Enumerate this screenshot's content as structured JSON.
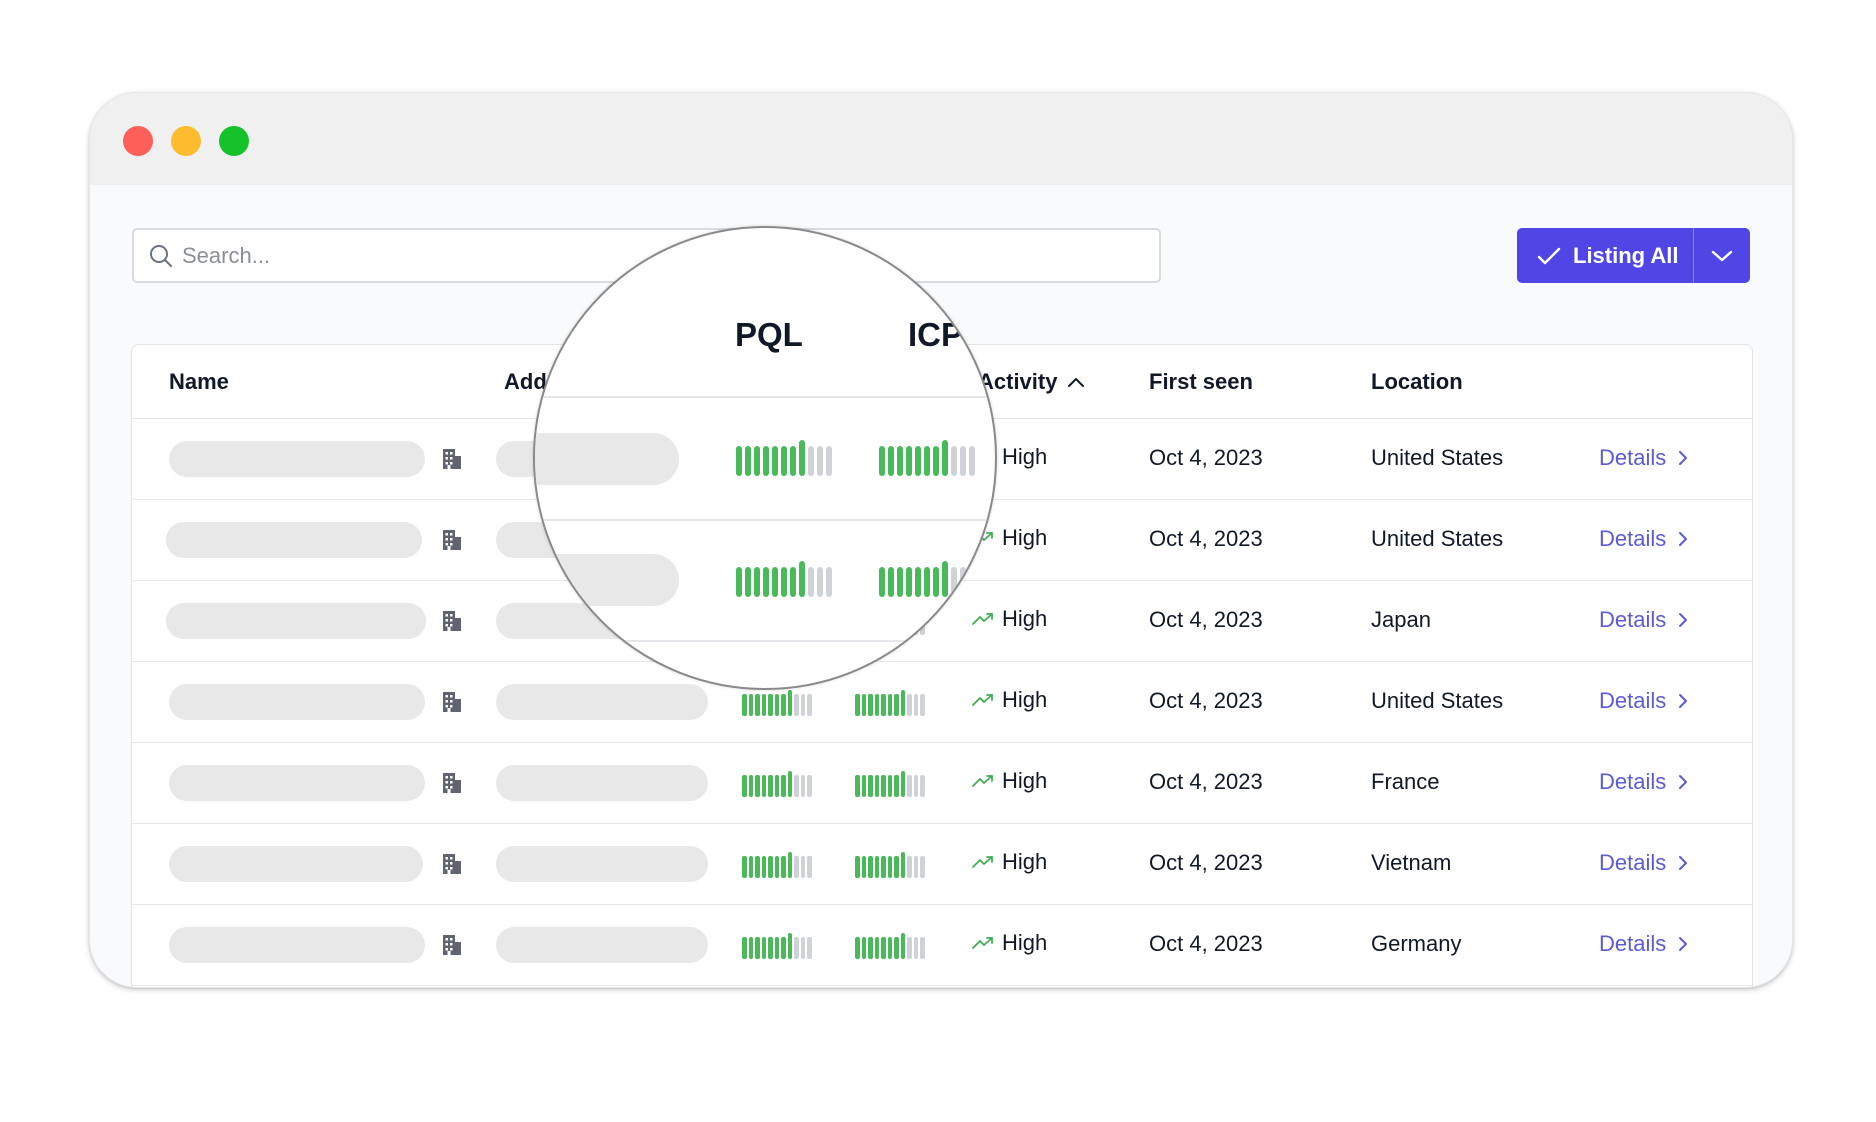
{
  "search": {
    "placeholder": "Search..."
  },
  "listing_button": {
    "label": "Listing All"
  },
  "columns": {
    "name": "Name",
    "address": "Addr",
    "activity": "Activity",
    "first_seen": "First seen",
    "location": "Location"
  },
  "lens": {
    "pql": "PQL",
    "icp": "ICP"
  },
  "rows": [
    {
      "activity": "High",
      "first_seen": "Oct 4, 2023",
      "location": "United States",
      "details": "Details"
    },
    {
      "activity": "High",
      "first_seen": "Oct 4, 2023",
      "location": "United States",
      "details": "Details"
    },
    {
      "activity": "High",
      "first_seen": "Oct 4, 2023",
      "location": "Japan",
      "details": "Details"
    },
    {
      "activity": "High",
      "first_seen": "Oct 4, 2023",
      "location": "United States",
      "details": "Details"
    },
    {
      "activity": "High",
      "first_seen": "Oct 4, 2023",
      "location": "France",
      "details": "Details"
    },
    {
      "activity": "High",
      "first_seen": "Oct 4, 2023",
      "location": "Vietnam",
      "details": "Details"
    },
    {
      "activity": "High",
      "first_seen": "Oct 4, 2023",
      "location": "Germany",
      "details": "Details"
    }
  ],
  "score_bars": {
    "pql_filled": 8,
    "icp_filled": 8,
    "total": 11
  },
  "colors": {
    "accent": "#4f46e5",
    "link": "#5b5bd6",
    "bar_on": "#4ab95a",
    "bar_off": "#cfd2d6",
    "trend": "#3fae52"
  },
  "icons": [
    "search-icon",
    "check-icon",
    "chevron-down-icon",
    "building-icon",
    "trend-up-icon",
    "chevron-up-icon",
    "chevron-right-icon"
  ]
}
